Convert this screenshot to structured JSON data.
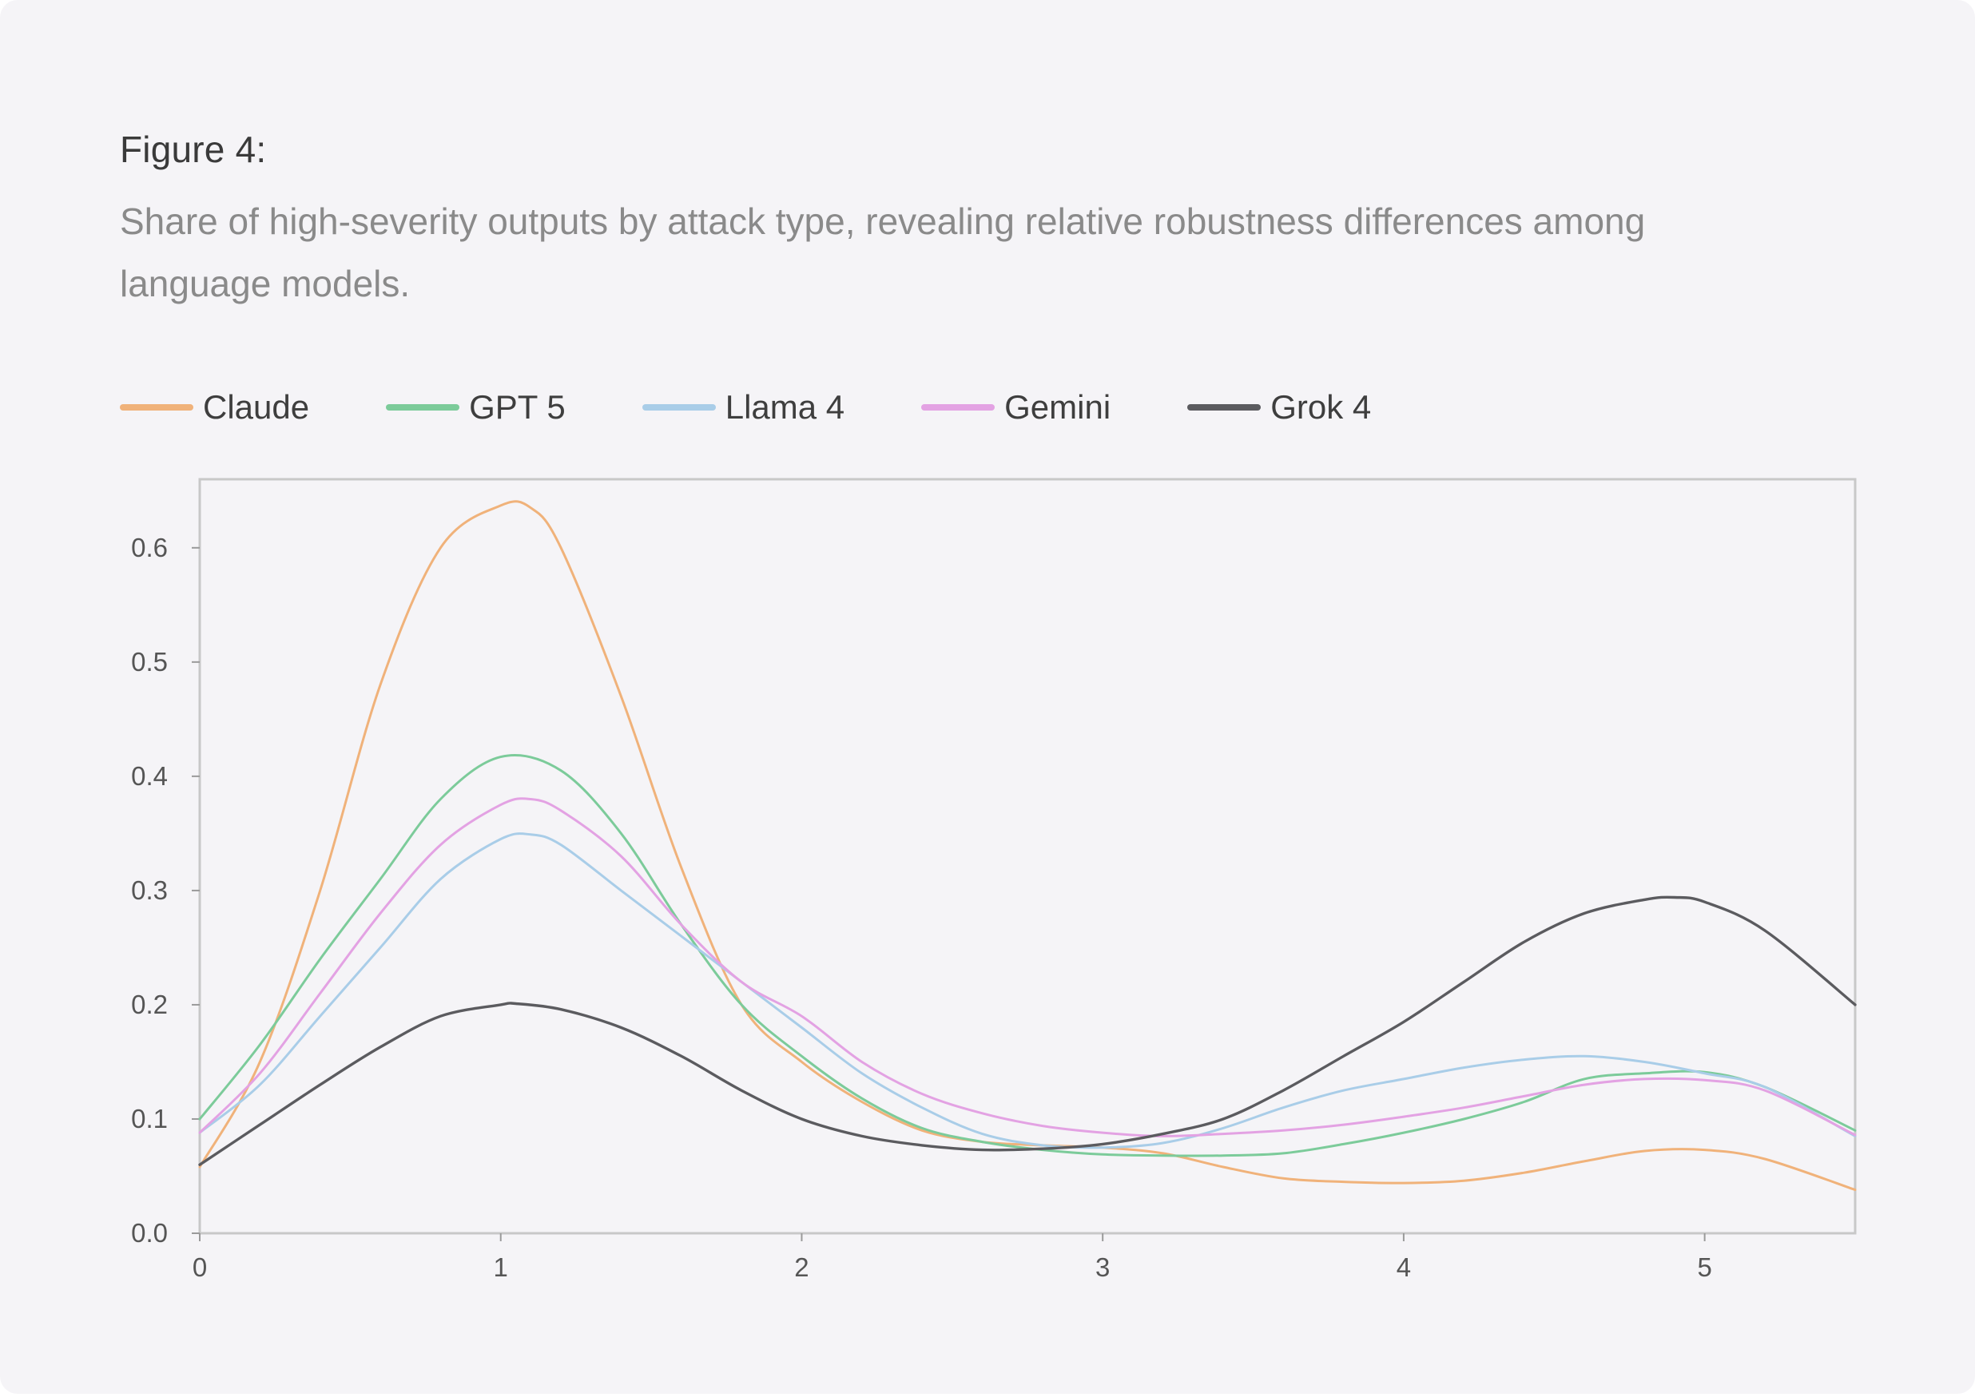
{
  "figure": {
    "title": "Figure 4:",
    "caption": "Share of high-severity outputs by attack type, revealing relative robustness differences among language models."
  },
  "colors": {
    "background": "#f5f4f7",
    "axis": "#c8c8c8",
    "tick_text": "#555555"
  },
  "chart_data": {
    "type": "line",
    "title": "",
    "xlabel": "",
    "ylabel": "",
    "xlim": [
      0,
      5.5
    ],
    "ylim": [
      0,
      0.66
    ],
    "xticks": [
      0,
      1,
      2,
      3,
      4,
      5
    ],
    "yticks": [
      0.0,
      0.1,
      0.2,
      0.3,
      0.4,
      0.5,
      0.6
    ],
    "grid": false,
    "legend_position": "top-left",
    "series": [
      {
        "name": "Claude",
        "color": "#f0b27a",
        "x": [
          0,
          0.2,
          0.4,
          0.6,
          0.8,
          1.0,
          1.1,
          1.2,
          1.4,
          1.6,
          1.8,
          2.0,
          2.2,
          2.4,
          2.6,
          2.8,
          3.0,
          3.2,
          3.4,
          3.6,
          3.8,
          4.0,
          4.2,
          4.4,
          4.6,
          4.8,
          5.0,
          5.2,
          5.5
        ],
        "values": [
          0.058,
          0.15,
          0.3,
          0.48,
          0.6,
          0.637,
          0.635,
          0.6,
          0.47,
          0.32,
          0.2,
          0.15,
          0.115,
          0.09,
          0.08,
          0.077,
          0.075,
          0.07,
          0.058,
          0.048,
          0.045,
          0.044,
          0.046,
          0.053,
          0.063,
          0.072,
          0.073,
          0.065,
          0.038
        ]
      },
      {
        "name": "GPT 5",
        "color": "#7ccb9a",
        "x": [
          0,
          0.2,
          0.4,
          0.6,
          0.8,
          1.0,
          1.2,
          1.4,
          1.6,
          1.8,
          2.0,
          2.2,
          2.4,
          2.6,
          2.8,
          3.0,
          3.2,
          3.4,
          3.6,
          3.8,
          4.0,
          4.2,
          4.4,
          4.6,
          4.8,
          5.0,
          5.2,
          5.5
        ],
        "values": [
          0.1,
          0.165,
          0.24,
          0.31,
          0.38,
          0.417,
          0.405,
          0.35,
          0.27,
          0.2,
          0.155,
          0.118,
          0.092,
          0.08,
          0.073,
          0.069,
          0.068,
          0.068,
          0.07,
          0.078,
          0.088,
          0.1,
          0.115,
          0.135,
          0.14,
          0.141,
          0.128,
          0.09
        ]
      },
      {
        "name": "Llama 4",
        "color": "#a9cde8",
        "x": [
          0,
          0.2,
          0.4,
          0.6,
          0.8,
          1.0,
          1.1,
          1.2,
          1.4,
          1.6,
          1.8,
          2.0,
          2.2,
          2.4,
          2.6,
          2.8,
          3.0,
          3.2,
          3.4,
          3.6,
          3.8,
          4.0,
          4.2,
          4.4,
          4.6,
          4.8,
          5.0,
          5.2,
          5.5
        ],
        "values": [
          0.088,
          0.13,
          0.19,
          0.25,
          0.31,
          0.345,
          0.349,
          0.34,
          0.3,
          0.26,
          0.22,
          0.18,
          0.14,
          0.11,
          0.087,
          0.077,
          0.075,
          0.079,
          0.092,
          0.11,
          0.125,
          0.135,
          0.145,
          0.152,
          0.155,
          0.15,
          0.14,
          0.128,
          0.085
        ]
      },
      {
        "name": "Gemini",
        "color": "#e3a2e3",
        "x": [
          0,
          0.2,
          0.4,
          0.6,
          0.8,
          1.0,
          1.1,
          1.2,
          1.4,
          1.6,
          1.8,
          2.0,
          2.2,
          2.4,
          2.6,
          2.8,
          3.0,
          3.2,
          3.4,
          3.6,
          3.8,
          4.0,
          4.2,
          4.4,
          4.6,
          4.8,
          5.0,
          5.2,
          5.5
        ],
        "values": [
          0.088,
          0.14,
          0.21,
          0.28,
          0.34,
          0.375,
          0.38,
          0.37,
          0.33,
          0.27,
          0.22,
          0.19,
          0.15,
          0.122,
          0.105,
          0.094,
          0.088,
          0.085,
          0.087,
          0.09,
          0.095,
          0.102,
          0.11,
          0.12,
          0.13,
          0.135,
          0.134,
          0.125,
          0.086
        ]
      },
      {
        "name": "Grok 4",
        "color": "#5b5b5f",
        "x": [
          0,
          0.2,
          0.4,
          0.6,
          0.8,
          1.0,
          1.05,
          1.2,
          1.4,
          1.6,
          1.8,
          2.0,
          2.2,
          2.4,
          2.6,
          2.8,
          3.0,
          3.2,
          3.4,
          3.6,
          3.8,
          4.0,
          4.2,
          4.4,
          4.6,
          4.8,
          4.9,
          5.0,
          5.2,
          5.5
        ],
        "values": [
          0.06,
          0.095,
          0.13,
          0.163,
          0.19,
          0.2,
          0.201,
          0.196,
          0.18,
          0.155,
          0.125,
          0.1,
          0.085,
          0.077,
          0.073,
          0.074,
          0.078,
          0.087,
          0.1,
          0.125,
          0.155,
          0.185,
          0.22,
          0.255,
          0.28,
          0.292,
          0.294,
          0.29,
          0.265,
          0.2
        ]
      }
    ]
  }
}
